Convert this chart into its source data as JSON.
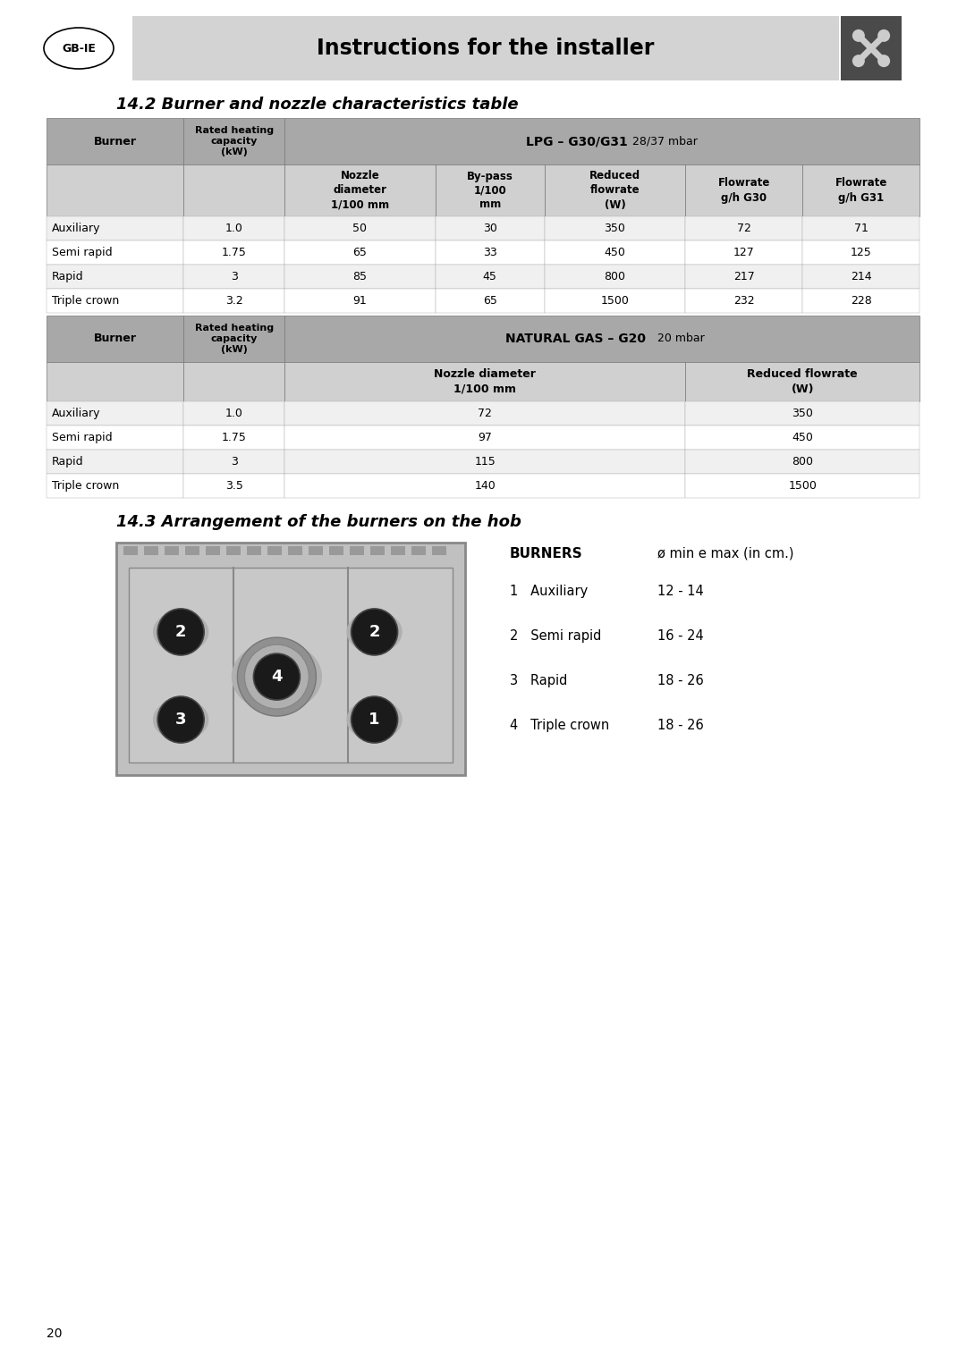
{
  "page_bg": "#ffffff",
  "header_bg": "#d3d3d3",
  "header_text": "Instructions for the installer",
  "gbIE_label": "GB-IE",
  "section_title_1": "14.2 Burner and nozzle characteristics table",
  "section_title_2": "14.3 Arrangement of the burners on the hob",
  "lpg_col_headers": [
    "Nozzle\ndiameter\n1/100 mm",
    "By-pass\n1/100\nmm",
    "Reduced\nflowrate\n(W)",
    "Flowrate\ng/h G30",
    "Flowrate\ng/h G31"
  ],
  "lpg_rows": [
    [
      "Auxiliary",
      "1.0",
      "50",
      "30",
      "350",
      "72",
      "71"
    ],
    [
      "Semi rapid",
      "1.75",
      "65",
      "33",
      "450",
      "127",
      "125"
    ],
    [
      "Rapid",
      "3",
      "85",
      "45",
      "800",
      "217",
      "214"
    ],
    [
      "Triple crown",
      "3.2",
      "91",
      "65",
      "1500",
      "232",
      "228"
    ]
  ],
  "ng_rows": [
    [
      "Auxiliary",
      "1.0",
      "72",
      "350"
    ],
    [
      "Semi rapid",
      "1.75",
      "97",
      "450"
    ],
    [
      "Rapid",
      "3",
      "115",
      "800"
    ],
    [
      "Triple crown",
      "3.5",
      "140",
      "1500"
    ]
  ],
  "burners_title": "BURNERS",
  "burners_subtitle": "ø min e max (in cm.)",
  "burner_list": [
    [
      "1",
      "Auxiliary",
      "12 - 14"
    ],
    [
      "2",
      "Semi rapid",
      "16 - 24"
    ],
    [
      "3",
      "Rapid",
      "18 - 26"
    ],
    [
      "4",
      "Triple crown",
      "18 - 26"
    ]
  ],
  "page_number": "20",
  "header_dark_bg": "#4a4a4a",
  "row_odd_bg": "#f0f0f0",
  "row_even_bg": "#ffffff",
  "header_row_bg": "#a8a8a8",
  "subheader_bg": "#d0d0d0"
}
